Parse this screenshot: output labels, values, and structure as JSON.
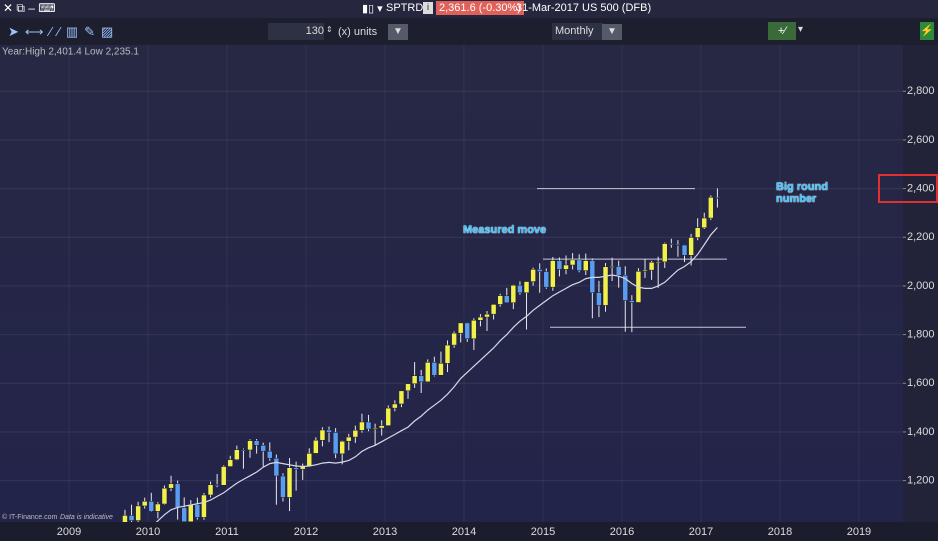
{
  "window": {
    "symbol": "SPTRD",
    "price": "2,361.6 (-0.30%)",
    "info": "31-Mar-2017 US 500 (DFB)"
  },
  "toolbar": {
    "units_value": "130",
    "units_label": "(x) units",
    "period": "Monthly"
  },
  "chart_data": {
    "type": "candlestick",
    "subtitle": "Year:High 2,401.4 Low 2,235.1",
    "credit": "© IT-Finance.com",
    "note": "Data is indicative",
    "annotations": [
      "Measured move",
      "Big round number"
    ],
    "categories": [
      "2009",
      null,
      null,
      null,
      null,
      null,
      null,
      null,
      null,
      null,
      null,
      null,
      "2010",
      null,
      null,
      null,
      null,
      null,
      null,
      null,
      null,
      null,
      null,
      null,
      "2011",
      null,
      null,
      null,
      null,
      null,
      null,
      null,
      null,
      null,
      null,
      null,
      "2012",
      null,
      null,
      null,
      null,
      null,
      null,
      null,
      null,
      null,
      null,
      null,
      "2013",
      null,
      null,
      null,
      null,
      null,
      null,
      null,
      null,
      null,
      null,
      null,
      "2014",
      null,
      null,
      null,
      null,
      null,
      null,
      null,
      null,
      null,
      null,
      null,
      "2015",
      null,
      null,
      null,
      null,
      null,
      null,
      null,
      null,
      null,
      null,
      null,
      "2016",
      null,
      null,
      null,
      null,
      null,
      null,
      null,
      null,
      null,
      null,
      null,
      "2017",
      null,
      null,
      null,
      null,
      null,
      null,
      null,
      null,
      null,
      null,
      null,
      "2018",
      null,
      null,
      null,
      null,
      null,
      null,
      null,
      null,
      null,
      null,
      null,
      "2019",
      null,
      null,
      null,
      null,
      null
    ],
    "open": [
      null,
      null,
      null,
      null,
      null,
      null,
      null,
      null,
      1021,
      1057,
      1036,
      1096,
      1115,
      1074,
      1104,
      1169,
      1187,
      1089,
      1031,
      1102,
      1049,
      1141,
      1183,
      1181,
      1258,
      1286,
      1327,
      1326,
      1364,
      1345,
      1321,
      1292,
      1219,
      1131,
      1253,
      1247,
      1258,
      1312,
      1366,
      1408,
      1398,
      1310,
      1362,
      1379,
      1407,
      1441,
      1412,
      1416,
      1426,
      1498,
      1515,
      1569,
      1598,
      1631,
      1606,
      1686,
      1633,
      1682,
      1757,
      1806,
      1848,
      1783,
      1859,
      1872,
      1884,
      1924,
      1960,
      1931,
      2003,
      1972,
      2018,
      2068,
      2059,
      1995,
      2104,
      2068,
      2086,
      2107,
      2063,
      2104,
      1972,
      1920,
      2079,
      2080,
      2044,
      1940,
      1932,
      2060,
      2065,
      2097,
      2099,
      2174,
      2171,
      2168,
      2126,
      2199,
      2239,
      2279,
      2364,
      null,
      null,
      null,
      null,
      null,
      null,
      null,
      null,
      null,
      null,
      null,
      null,
      null,
      null,
      null,
      null,
      null,
      null,
      null,
      null,
      null,
      null,
      null,
      null,
      null,
      null,
      null
    ],
    "high": [
      null,
      null,
      null,
      null,
      null,
      null,
      null,
      null,
      1080,
      1101,
      1113,
      1130,
      1150,
      1112,
      1180,
      1220,
      1200,
      1131,
      1120,
      1130,
      1149,
      1196,
      1227,
      1263,
      1302,
      1344,
      1332,
      1370,
      1371,
      1356,
      1357,
      1307,
      1230,
      1293,
      1278,
      1270,
      1333,
      1378,
      1419,
      1422,
      1416,
      1364,
      1392,
      1426,
      1475,
      1470,
      1434,
      1448,
      1509,
      1530,
      1570,
      1598,
      1687,
      1655,
      1698,
      1709,
      1730,
      1776,
      1813,
      1849,
      1850,
      1867,
      1884,
      1897,
      1925,
      1968,
      1992,
      2005,
      2019,
      2018,
      2075,
      2093,
      2072,
      2119,
      2117,
      2125,
      2135,
      2130,
      2133,
      2113,
      2021,
      2094,
      2116,
      2104,
      2081,
      1962,
      2073,
      2111,
      2103,
      2120,
      2178,
      2194,
      2188,
      2169,
      2214,
      2278,
      2301,
      2372,
      2401,
      null,
      null,
      null,
      null,
      null,
      null,
      null,
      null,
      null,
      null,
      null,
      null,
      null,
      null,
      null,
      null,
      null,
      null,
      null,
      null,
      null,
      null,
      null,
      null,
      null,
      null,
      null
    ],
    "low": [
      null,
      null,
      null,
      null,
      null,
      null,
      null,
      null,
      1019,
      1020,
      1029,
      1085,
      1071,
      1045,
      1101,
      1157,
      1040,
      1028,
      1011,
      1040,
      1039,
      1131,
      1173,
      1181,
      1257,
      1284,
      1249,
      1294,
      1311,
      1258,
      1282,
      1101,
      1114,
      1075,
      1159,
      1203,
      1258,
      1312,
      1341,
      1358,
      1292,
      1267,
      1325,
      1355,
      1397,
      1403,
      1344,
      1385,
      1426,
      1485,
      1502,
      1536,
      1581,
      1560,
      1605,
      1628,
      1633,
      1646,
      1746,
      1768,
      1770,
      1737,
      1834,
      1815,
      1862,
      1915,
      1931,
      1905,
      1964,
      1821,
      2001,
      1972,
      1988,
      1980,
      2039,
      2048,
      2068,
      2056,
      2045,
      1867,
      1872,
      1894,
      2020,
      1993,
      1812,
      1810,
      1932,
      2033,
      2025,
      1992,
      2074,
      2157,
      2120,
      2098,
      2084,
      2188,
      2234,
      2271,
      2322,
      null,
      null,
      null,
      null,
      null,
      null,
      null,
      null,
      null,
      null,
      null,
      null,
      null,
      null,
      null,
      null,
      null,
      null,
      null,
      null,
      null,
      null,
      null,
      null,
      null,
      null,
      null
    ],
    "close": [
      null,
      null,
      null,
      null,
      null,
      null,
      null,
      null,
      1057,
      1036,
      1096,
      1115,
      1074,
      1104,
      1169,
      1187,
      1089,
      1031,
      1102,
      1049,
      1141,
      1183,
      1181,
      1258,
      1286,
      1327,
      1326,
      1364,
      1345,
      1321,
      1292,
      1219,
      1131,
      1253,
      1247,
      1258,
      1312,
      1366,
      1408,
      1398,
      1310,
      1362,
      1379,
      1407,
      1441,
      1412,
      1416,
      1426,
      1498,
      1515,
      1569,
      1598,
      1631,
      1606,
      1686,
      1633,
      1682,
      1757,
      1806,
      1848,
      1783,
      1859,
      1872,
      1884,
      1924,
      1960,
      1931,
      2003,
      1972,
      2018,
      2068,
      2059,
      1995,
      2104,
      2068,
      2086,
      2107,
      2063,
      2104,
      1972,
      1920,
      2079,
      2080,
      2044,
      1940,
      1932,
      2060,
      2065,
      2097,
      2099,
      2174,
      2171,
      2168,
      2126,
      2199,
      2239,
      2279,
      2364,
      2362,
      null,
      null,
      null,
      null,
      null,
      null,
      null,
      null,
      null,
      null,
      null,
      null,
      null,
      null,
      null,
      null,
      null,
      null,
      null,
      null,
      null,
      null,
      null,
      null,
      null,
      null,
      null
    ],
    "ma": [
      null,
      null,
      null,
      null,
      null,
      null,
      null,
      null,
      null,
      null,
      null,
      null,
      1010,
      1035,
      1060,
      1080,
      1090,
      1095,
      1100,
      1105,
      1110,
      1120,
      1135,
      1150,
      1170,
      1190,
      1205,
      1220,
      1235,
      1255,
      1270,
      1275,
      1270,
      1265,
      1260,
      1258,
      1260,
      1265,
      1272,
      1275,
      1272,
      1276,
      1283,
      1298,
      1320,
      1335,
      1345,
      1360,
      1375,
      1390,
      1405,
      1420,
      1445,
      1465,
      1490,
      1510,
      1530,
      1555,
      1585,
      1620,
      1645,
      1670,
      1695,
      1720,
      1745,
      1775,
      1800,
      1830,
      1855,
      1875,
      1900,
      1920,
      1940,
      1960,
      1975,
      1990,
      2005,
      2015,
      2030,
      2035,
      2035,
      2040,
      2045,
      2040,
      2030,
      2010,
      1995,
      1990,
      1990,
      2000,
      2015,
      2040,
      2065,
      2080,
      2100,
      2130,
      2170,
      2210,
      2240,
      null,
      null,
      null,
      null,
      null,
      null,
      null,
      null,
      null,
      null,
      null,
      null,
      null,
      null,
      null,
      null,
      null,
      null,
      null,
      null,
      null,
      null,
      null,
      null,
      null,
      null,
      null
    ],
    "up_color": "#f2f04a",
    "down_color": "#5a9cf0",
    "ma_color": "#d8d8e8",
    "ylim": [
      1030,
      2990
    ],
    "yticks": [
      {
        "value": 1200,
        "label": "1,200"
      },
      {
        "value": 1400,
        "label": "1,400"
      },
      {
        "value": 1600,
        "label": "1,600"
      },
      {
        "value": 1800,
        "label": "1,800"
      },
      {
        "value": 2000,
        "label": "2,000"
      },
      {
        "value": 2200,
        "label": "2,200"
      },
      {
        "value": 2400,
        "label": "2,400"
      },
      {
        "value": 2600,
        "label": "2,600"
      },
      {
        "value": 2800,
        "label": "2,800"
      }
    ],
    "grid": true,
    "hlines": [
      2400,
      2110,
      1830
    ]
  }
}
